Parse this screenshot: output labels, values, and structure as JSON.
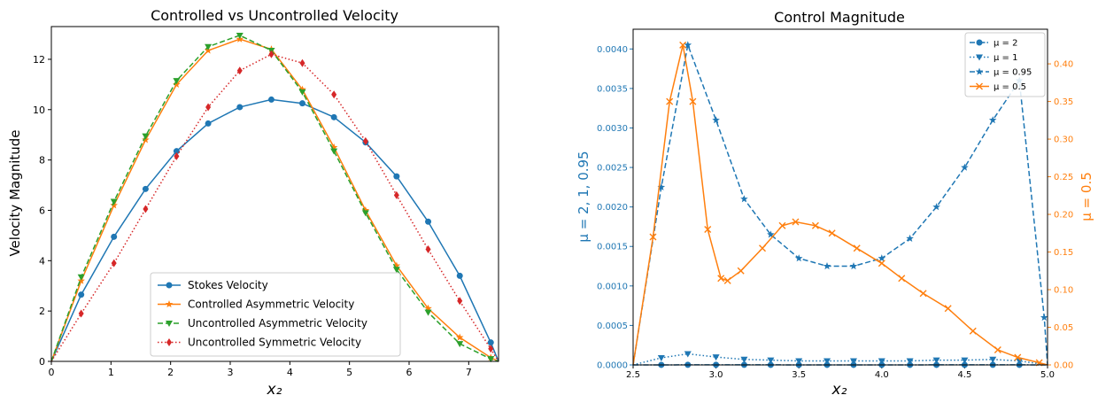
{
  "chart_data": [
    {
      "type": "line",
      "title": "Controlled vs Uncontrolled Velocity",
      "xlabel": "x₂",
      "ylabel": "Velocity Magnitude",
      "xlim": [
        0,
        7.5
      ],
      "ylim": [
        0,
        13.3
      ],
      "xticks": [
        0,
        1,
        2,
        3,
        4,
        5,
        6,
        7
      ],
      "yticks": [
        0,
        2,
        4,
        6,
        8,
        10,
        12
      ],
      "grid": false,
      "legend_position": "lower center",
      "series": [
        {
          "name": "Stokes Velocity",
          "color": "#1f77b4",
          "linestyle": "solid",
          "marker": "circle",
          "x": [
            0,
            0.5,
            1.05,
            1.58,
            2.1,
            2.63,
            3.16,
            3.69,
            4.21,
            4.74,
            5.27,
            5.79,
            6.32,
            6.85,
            7.37,
            7.5
          ],
          "y": [
            0,
            2.65,
            4.95,
            6.85,
            8.35,
            9.45,
            10.1,
            10.4,
            10.25,
            9.7,
            8.7,
            7.35,
            5.55,
            3.4,
            0.75,
            0
          ]
        },
        {
          "name": "Controlled Asymmetric Velocity",
          "color": "#ff7f0e",
          "linestyle": "solid",
          "marker": "star",
          "x": [
            0,
            0.5,
            1.05,
            1.58,
            2.1,
            2.63,
            3.16,
            3.69,
            4.21,
            4.74,
            5.27,
            5.79,
            6.32,
            6.85,
            7.37,
            7.5
          ],
          "y": [
            0,
            3.2,
            6.2,
            8.8,
            11.0,
            12.35,
            12.8,
            12.4,
            10.8,
            8.5,
            6.0,
            3.8,
            2.1,
            0.95,
            0.15,
            0
          ]
        },
        {
          "name": "Uncontrolled Asymmetric Velocity",
          "color": "#2ca02c",
          "linestyle": "dashed",
          "marker": "triangle-down",
          "x": [
            0,
            0.5,
            1.05,
            1.58,
            2.1,
            2.63,
            3.16,
            3.69,
            4.21,
            4.74,
            5.27,
            5.79,
            6.32,
            6.85,
            7.37,
            7.5
          ],
          "y": [
            0,
            3.35,
            6.35,
            8.95,
            11.15,
            12.5,
            12.95,
            12.35,
            10.7,
            8.35,
            5.9,
            3.65,
            1.95,
            0.7,
            0.1,
            0
          ]
        },
        {
          "name": "Uncontrolled Symmetric Velocity",
          "color": "#d62728",
          "linestyle": "dotted",
          "marker": "diamond",
          "x": [
            0,
            0.5,
            1.05,
            1.58,
            2.1,
            2.63,
            3.16,
            3.69,
            4.21,
            4.74,
            5.27,
            5.79,
            6.32,
            6.85,
            7.37,
            7.5
          ],
          "y": [
            0,
            1.9,
            3.9,
            6.05,
            8.15,
            10.1,
            11.55,
            12.2,
            11.85,
            10.6,
            8.75,
            6.6,
            4.45,
            2.4,
            0.5,
            0
          ]
        }
      ]
    },
    {
      "type": "line",
      "title": "Control Magnitude",
      "xlabel": "x₂",
      "ylabel_left": "μ = 2, 1, 0.95",
      "ylabel_right": "μ = 0.5",
      "xlim": [
        2.5,
        5.0
      ],
      "ylim_left": [
        0,
        0.00425
      ],
      "ylim_right": [
        0,
        0.446
      ],
      "xticks": [
        "2.5",
        "3.0",
        "3.5",
        "4.0",
        "4.5",
        "5.0"
      ],
      "yticks_left": [
        "0.0000",
        "0.0005",
        "0.0010",
        "0.0015",
        "0.0020",
        "0.0025",
        "0.0030",
        "0.0035",
        "0.0040"
      ],
      "yticks_right": [
        "0.00",
        "0.05",
        "0.10",
        "0.15",
        "0.20",
        "0.25",
        "0.30",
        "0.35",
        "0.40"
      ],
      "left_axis_color": "#1f77b4",
      "right_axis_color": "#ff7f0e",
      "grid": false,
      "legend_position": "upper right",
      "series": [
        {
          "name": "μ = 2",
          "axis": "left",
          "color": "#1f77b4",
          "linestyle": "dashdot",
          "marker": "circle",
          "x": [
            2.5,
            2.67,
            2.83,
            3.0,
            3.17,
            3.33,
            3.5,
            3.67,
            3.83,
            4.0,
            4.17,
            4.33,
            4.5,
            4.67,
            4.83,
            5.0
          ],
          "y": [
            0,
            5e-07,
            1e-06,
            1e-06,
            8e-07,
            6e-07,
            5e-07,
            5e-07,
            5e-07,
            5e-07,
            5e-07,
            6e-07,
            7e-07,
            8e-07,
            6e-07,
            0
          ]
        },
        {
          "name": "μ = 1",
          "axis": "left",
          "color": "#1f77b4",
          "linestyle": "dotted",
          "marker": "triangle-down",
          "x": [
            2.5,
            2.67,
            2.83,
            3.0,
            3.17,
            3.33,
            3.5,
            3.67,
            3.83,
            4.0,
            4.17,
            4.33,
            4.5,
            4.67,
            4.83,
            5.0
          ],
          "y": [
            0,
            9e-05,
            0.00014,
            0.0001,
            7e-05,
            6e-05,
            5e-05,
            5e-05,
            5e-05,
            5e-05,
            5e-05,
            6e-05,
            6e-05,
            7e-05,
            5e-05,
            0
          ]
        },
        {
          "name": "μ = 0.95",
          "axis": "left",
          "color": "#1f77b4",
          "linestyle": "dashed",
          "marker": "star",
          "x": [
            2.5,
            2.67,
            2.83,
            3.0,
            3.17,
            3.33,
            3.5,
            3.67,
            3.83,
            4.0,
            4.17,
            4.33,
            4.5,
            4.67,
            4.83,
            4.98,
            5.0
          ],
          "y": [
            0,
            0.00225,
            0.00405,
            0.0031,
            0.0021,
            0.00165,
            0.00135,
            0.00125,
            0.00125,
            0.00135,
            0.0016,
            0.002,
            0.0025,
            0.0031,
            0.0036,
            0.0006,
            0
          ]
        },
        {
          "name": "μ = 0.5",
          "axis": "right",
          "color": "#ff7f0e",
          "linestyle": "solid",
          "marker": "x",
          "x": [
            2.5,
            2.62,
            2.72,
            2.8,
            2.86,
            2.95,
            3.03,
            3.07,
            3.15,
            3.28,
            3.4,
            3.48,
            3.6,
            3.7,
            3.85,
            4.0,
            4.12,
            4.25,
            4.4,
            4.55,
            4.7,
            4.82,
            4.95,
            5.0
          ],
          "y": [
            0,
            0.17,
            0.35,
            0.425,
            0.35,
            0.18,
            0.115,
            0.112,
            0.125,
            0.155,
            0.185,
            0.19,
            0.185,
            0.175,
            0.155,
            0.135,
            0.115,
            0.095,
            0.075,
            0.045,
            0.02,
            0.01,
            0.003,
            0
          ]
        }
      ]
    }
  ]
}
